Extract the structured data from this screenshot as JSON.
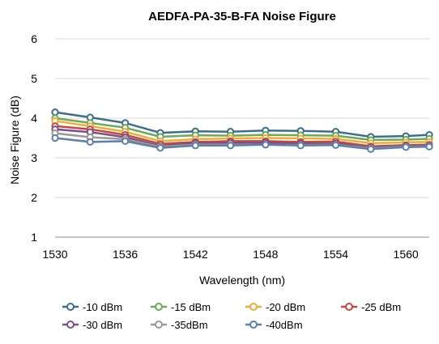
{
  "chart_data": {
    "type": "line",
    "title": "AEDFA-PA-35-B-FA Noise Figure",
    "xlabel": "Wavelength (nm)",
    "ylabel": "Noise Figure (dB)",
    "x": [
      1530,
      1533,
      1536,
      1539,
      1542,
      1545,
      1548,
      1551,
      1554,
      1557,
      1560,
      1562
    ],
    "xlim": [
      1530,
      1562
    ],
    "xticks": [
      1530,
      1536,
      1542,
      1548,
      1554,
      1560
    ],
    "ylim": [
      1,
      6
    ],
    "yticks": [
      1,
      2,
      3,
      4,
      5,
      6
    ],
    "grid": "horizontal",
    "legend_position": "bottom",
    "series": [
      {
        "name": "-10 dBm",
        "color": "#3c6e8c",
        "values": [
          4.15,
          4.02,
          3.88,
          3.63,
          3.67,
          3.66,
          3.69,
          3.68,
          3.66,
          3.53,
          3.55,
          3.58
        ]
      },
      {
        "name": "-15 dBm",
        "color": "#6aab58",
        "values": [
          4.0,
          3.88,
          3.76,
          3.53,
          3.57,
          3.56,
          3.58,
          3.57,
          3.56,
          3.45,
          3.46,
          3.48
        ]
      },
      {
        "name": "-20 dBm",
        "color": "#f0ad32",
        "values": [
          3.93,
          3.8,
          3.66,
          3.42,
          3.47,
          3.49,
          3.5,
          3.49,
          3.48,
          3.37,
          3.39,
          3.4
        ]
      },
      {
        "name": "-25 dBm",
        "color": "#c8463c",
        "values": [
          3.8,
          3.72,
          3.58,
          3.35,
          3.4,
          3.42,
          3.42,
          3.4,
          3.41,
          3.29,
          3.32,
          3.33
        ]
      },
      {
        "name": "-30 dBm",
        "color": "#7b4f8c",
        "values": [
          3.72,
          3.65,
          3.52,
          3.3,
          3.37,
          3.38,
          3.38,
          3.36,
          3.36,
          3.26,
          3.3,
          3.31
        ]
      },
      {
        "name": "-35dBm",
        "color": "#999999",
        "values": [
          3.62,
          3.52,
          3.47,
          3.28,
          3.33,
          3.33,
          3.33,
          3.32,
          3.33,
          3.24,
          3.28,
          3.29
        ]
      },
      {
        "name": "-40dBm",
        "color": "#5b7fa8",
        "values": [
          3.5,
          3.4,
          3.42,
          3.25,
          3.31,
          3.31,
          3.33,
          3.31,
          3.32,
          3.22,
          3.27,
          3.28
        ]
      }
    ]
  }
}
